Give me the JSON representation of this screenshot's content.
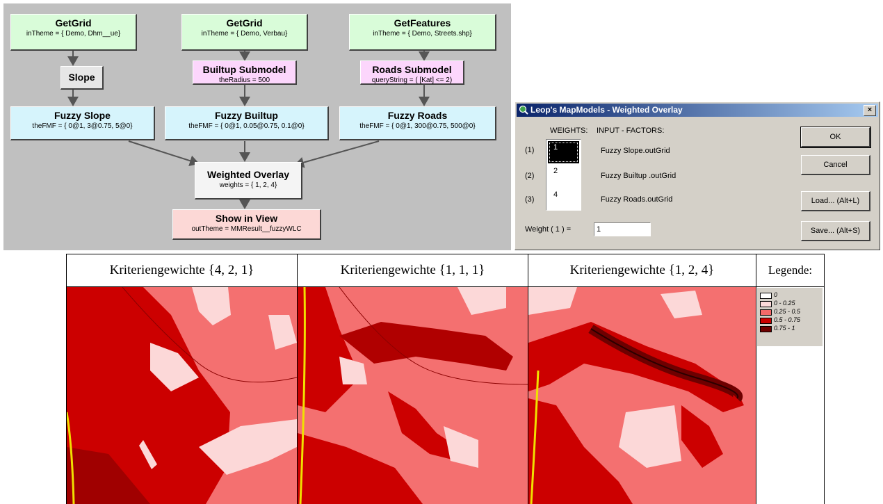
{
  "diagram": {
    "nodes": [
      {
        "key": "getgrid1",
        "title": "GetGrid",
        "param": "inTheme =  { Demo, Dhm__ue}",
        "color": "#d9fcd9"
      },
      {
        "key": "getgrid2",
        "title": "GetGrid",
        "param": "inTheme =  { Demo, Verbau}",
        "color": "#d9fcd9"
      },
      {
        "key": "getfeatures",
        "title": "GetFeatures",
        "param": "inTheme =  { Demo, Streets.shp}",
        "color": "#d9fcd9"
      },
      {
        "key": "slope",
        "title": "Slope",
        "param": "",
        "color": "#e6e6e6"
      },
      {
        "key": "builtup-submodel",
        "title": "Builtup Submodel",
        "param": "theRadius = 500",
        "color": "#fcd6fc"
      },
      {
        "key": "roads-submodel",
        "title": "Roads Submodel",
        "param": "queryString =  ( [Kat] <= 2)",
        "color": "#fcd6fc"
      },
      {
        "key": "fuzzy-slope",
        "title": "Fuzzy Slope",
        "param": "theFMF =  { 0@1, 3@0.75, 5@0}",
        "color": "#d6f4fc"
      },
      {
        "key": "fuzzy-builtup",
        "title": "Fuzzy Builtup",
        "param": "theFMF =  { 0@1, 0.05@0.75, 0.1@0}",
        "color": "#d6f4fc"
      },
      {
        "key": "fuzzy-roads",
        "title": "Fuzzy Roads",
        "param": "theFMF =  { 0@1, 300@0.75, 500@0}",
        "color": "#d6f4fc"
      },
      {
        "key": "weighted-overlay",
        "title": "Weighted Overlay",
        "param": "weights =  { 1, 2, 4}",
        "color": "#f4f4f4"
      },
      {
        "key": "show-in-view",
        "title": "Show in View",
        "param": "outTheme = MMResult__fuzzyWLC",
        "color": "#fcd8d6"
      }
    ]
  },
  "dialog": {
    "title": "Leop's MapModels - Weighted Overlay",
    "close_label": "×",
    "weights_header": "WEIGHTS:",
    "factors_header": "INPUT - FACTORS:",
    "rows": [
      {
        "index": "(1)",
        "weight": "1",
        "factor": "Fuzzy Slope.outGrid"
      },
      {
        "index": "(2)",
        "weight": "2",
        "factor": "Fuzzy Builtup .outGrid"
      },
      {
        "index": "(3)",
        "weight": "4",
        "factor": "Fuzzy Roads.outGrid"
      }
    ],
    "weight_label": "Weight ( 1 ) =",
    "weight_value": "1",
    "buttons": {
      "ok": "OK",
      "cancel": "Cancel",
      "load": "Load... (Alt+L)",
      "save": "Save... (Alt+S)"
    }
  },
  "maps": {
    "headers": [
      "Kriteriengewichte {4, 2, 1}",
      "Kriteriengewichte {1, 1, 1}",
      "Kriteriengewichte {1, 2, 4}"
    ],
    "legend_title": "Legende:",
    "legend": [
      {
        "label": "0",
        "color": "#ffffff"
      },
      {
        "label": "0 - 0.25",
        "color": "#fcdada"
      },
      {
        "label": "0.25 - 0.5",
        "color": "#f46a6a"
      },
      {
        "label": "0.5 - 0.75",
        "color": "#cc0000"
      },
      {
        "label": "0.75 - 1",
        "color": "#6e0000"
      }
    ]
  }
}
